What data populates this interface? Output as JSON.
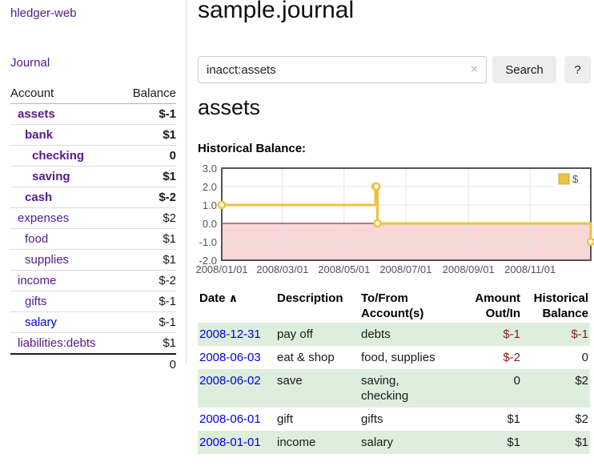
{
  "sidebar": {
    "brand": "hledger-web",
    "nav": {
      "journal": "Journal"
    },
    "accounts": {
      "headers": {
        "account": "Account",
        "balance": "Balance"
      },
      "rows": [
        {
          "name": "assets",
          "balance": "$-1",
          "indent": 1,
          "bold": true,
          "link": "purple",
          "balance_class": "neg"
        },
        {
          "name": "bank",
          "balance": "$1",
          "indent": 2,
          "bold": true,
          "link": "purple",
          "balance_class": "pos"
        },
        {
          "name": "checking",
          "balance": "0",
          "indent": 3,
          "bold": true,
          "link": "purple",
          "balance_class": "pos"
        },
        {
          "name": "saving",
          "balance": "$1",
          "indent": 3,
          "bold": true,
          "link": "purple",
          "balance_class": "pos"
        },
        {
          "name": "cash",
          "balance": "$-2",
          "indent": 2,
          "bold": true,
          "link": "purple",
          "balance_class": "neg"
        },
        {
          "name": "expenses",
          "balance": "$2",
          "indent": 1,
          "bold": false,
          "link": "purple",
          "balance_class": "pos"
        },
        {
          "name": "food",
          "balance": "$1",
          "indent": 2,
          "bold": false,
          "link": "purple",
          "balance_class": "pos"
        },
        {
          "name": "supplies",
          "balance": "$1",
          "indent": 2,
          "bold": false,
          "link": "purple",
          "balance_class": "pos"
        },
        {
          "name": "income",
          "balance": "$-2",
          "indent": 1,
          "bold": false,
          "link": "purple",
          "balance_class": "negl"
        },
        {
          "name": "gifts",
          "balance": "$-1",
          "indent": 2,
          "bold": false,
          "link": "purple",
          "balance_class": "negl"
        },
        {
          "name": "salary",
          "balance": "$-1",
          "indent": 2,
          "bold": false,
          "link": "blue",
          "balance_class": "negl"
        },
        {
          "name": "liabilities:debts",
          "balance": "$1",
          "indent": 1,
          "bold": false,
          "link": "purple",
          "balance_class": "pos",
          "last": true
        }
      ],
      "total": "0"
    }
  },
  "main": {
    "title": "sample.journal",
    "search": {
      "value": "inacct:assets",
      "clear_icon": "×",
      "submit_label": "Search",
      "help_label": "?"
    },
    "account_heading": "assets",
    "chart_title": "Historical Balance:",
    "register": {
      "sort_asc_icon": "∧",
      "headers": [
        {
          "line1": "Date",
          "line2": "",
          "align": "left",
          "sort": "asc"
        },
        {
          "line1": "Description",
          "line2": "",
          "align": "left"
        },
        {
          "line1": "To/From",
          "line2": "Account(s)",
          "align": "left"
        },
        {
          "line1": "Amount",
          "line2": "Out/In",
          "align": "right"
        },
        {
          "line1": "Historical",
          "line2": "Balance",
          "align": "right"
        }
      ],
      "rows": [
        {
          "date": "2008-12-31",
          "description": "pay off",
          "accounts": "debts",
          "amount": "$-1",
          "amount_class": "neg",
          "balance": "$-1",
          "balance_class": "neg"
        },
        {
          "date": "2008-06-03",
          "description": "eat & shop",
          "accounts": "food, supplies",
          "amount": "$-2",
          "amount_class": "neg",
          "balance": "0",
          "balance_class": "pos"
        },
        {
          "date": "2008-06-02",
          "description": "save",
          "accounts": "saving, checking",
          "amount": "0",
          "amount_class": "pos",
          "balance": "$2",
          "balance_class": "pos"
        },
        {
          "date": "2008-06-01",
          "description": "gift",
          "accounts": "gifts",
          "amount": "$1",
          "amount_class": "pos",
          "balance": "$2",
          "balance_class": "pos"
        },
        {
          "date": "2008-01-01",
          "description": "income",
          "accounts": "salary",
          "amount": "$1",
          "amount_class": "pos",
          "balance": "$1",
          "balance_class": "pos"
        }
      ]
    }
  },
  "chart_data": {
    "type": "line",
    "step": true,
    "title": "Historical Balance:",
    "series": [
      {
        "name": "$",
        "color": "#edc240",
        "points": [
          [
            "2008-01-01",
            1
          ],
          [
            "2008-06-01",
            2
          ],
          [
            "2008-06-02",
            2
          ],
          [
            "2008-06-03",
            0
          ],
          [
            "2008-12-31",
            -1
          ]
        ]
      }
    ],
    "xlim": [
      "2008-01-01",
      "2008-12-31"
    ],
    "ylim": [
      -2,
      3
    ],
    "x_ticks": [
      {
        "date": "2008-01-01",
        "label": "2008/01/01"
      },
      {
        "date": "2008-03-01",
        "label": "2008/03/01"
      },
      {
        "date": "2008-05-01",
        "label": "2008/05/01"
      },
      {
        "date": "2008-07-01",
        "label": "2008/07/01"
      },
      {
        "date": "2008-09-01",
        "label": "2008/09/01"
      },
      {
        "date": "2008-11-01",
        "label": "2008/11/01"
      }
    ],
    "y_ticks": [
      {
        "v": 3,
        "label": "3.0"
      },
      {
        "v": 2,
        "label": "2.0"
      },
      {
        "v": 1,
        "label": "1.0"
      },
      {
        "v": 0,
        "label": "0.0"
      },
      {
        "v": -1,
        "label": "-1.0"
      },
      {
        "v": -2,
        "label": "-2.0"
      }
    ],
    "grid": true,
    "legend": {
      "label": "$",
      "position": "top-right"
    },
    "negative_region": {
      "below": 0,
      "fill": "#f9d7d7",
      "line_color": "#8b0000"
    }
  },
  "colors": {
    "purple_link": "#551a8b",
    "blue_link": "#0000e0",
    "negative_strong": "#8b1c1c",
    "negative_light": "#c0706f",
    "row_highlight": "#ddeedd",
    "chart_line": "#edc240",
    "axis_text": "#545454"
  }
}
